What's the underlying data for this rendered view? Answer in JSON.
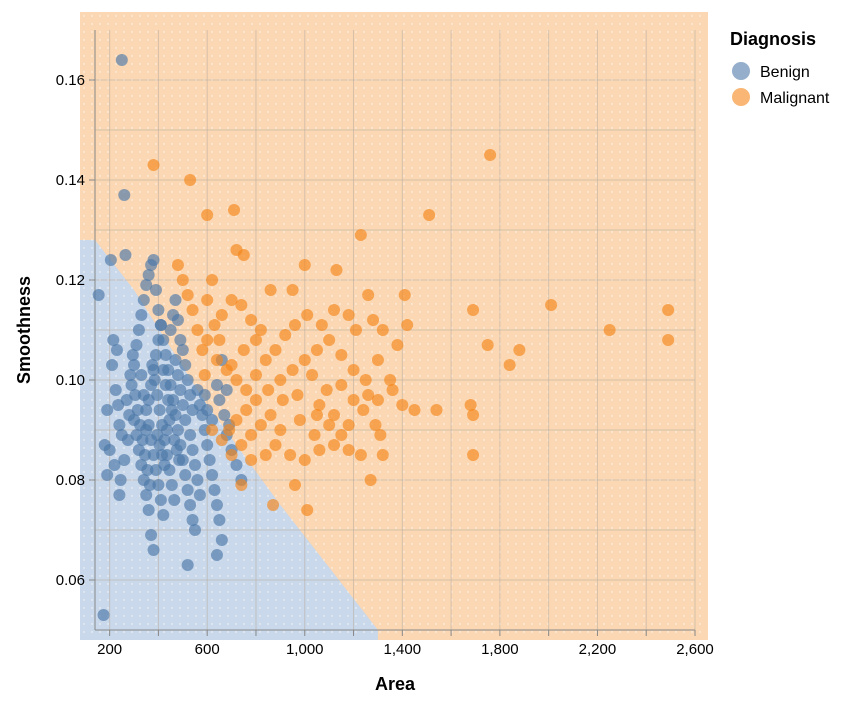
{
  "chart_data": {
    "type": "scatter",
    "xlabel": "Area",
    "ylabel": "Smoothness",
    "xlim": [
      140,
      2600
    ],
    "ylim": [
      0.05,
      0.17
    ],
    "x_ticks": [
      {
        "value": 200,
        "label": "200"
      },
      {
        "value": 600,
        "label": "600"
      },
      {
        "value": 1000,
        "label": "1,000"
      },
      {
        "value": 1400,
        "label": "1,400"
      },
      {
        "value": 1800,
        "label": "1,800"
      },
      {
        "value": 2200,
        "label": "2,200"
      },
      {
        "value": 2600,
        "label": "2,600"
      }
    ],
    "y_ticks": [
      {
        "value": 0.06,
        "label": "0.06"
      },
      {
        "value": 0.08,
        "label": "0.08"
      },
      {
        "value": 0.1,
        "label": "0.10"
      },
      {
        "value": 0.12,
        "label": "0.12"
      },
      {
        "value": 0.14,
        "label": "0.14"
      },
      {
        "value": 0.16,
        "label": "0.16"
      }
    ],
    "grid": true,
    "legend": {
      "title": "Diagnosis",
      "position": "top-right",
      "entries": [
        {
          "name": "Benign",
          "color": "#4c78a8"
        },
        {
          "name": "Malignant",
          "color": "#f58518"
        }
      ]
    },
    "background_regions": {
      "description_colors": {
        "Benign": "#c9d8ea",
        "Malignant": "#fbd7b3"
      },
      "boundary": [
        [
          140,
          0.128
        ],
        [
          300,
          0.118
        ],
        [
          600,
          0.095
        ],
        [
          900,
          0.075
        ],
        [
          1300,
          0.05
        ]
      ]
    },
    "series": [
      {
        "name": "Benign",
        "color": "#4c78a8",
        "points": [
          [
            250,
            0.164
          ],
          [
            260,
            0.137
          ],
          [
            155,
            0.117
          ],
          [
            205,
            0.124
          ],
          [
            265,
            0.125
          ],
          [
            180,
            0.087
          ],
          [
            200,
            0.086
          ],
          [
            190,
            0.081
          ],
          [
            190,
            0.094
          ],
          [
            175,
            0.053
          ],
          [
            215,
            0.108
          ],
          [
            230,
            0.106
          ],
          [
            210,
            0.103
          ],
          [
            225,
            0.098
          ],
          [
            235,
            0.095
          ],
          [
            240,
            0.091
          ],
          [
            250,
            0.089
          ],
          [
            220,
            0.083
          ],
          [
            240,
            0.077
          ],
          [
            245,
            0.08
          ],
          [
            260,
            0.084
          ],
          [
            275,
            0.088
          ],
          [
            280,
            0.093
          ],
          [
            290,
            0.099
          ],
          [
            300,
            0.103
          ],
          [
            310,
            0.107
          ],
          [
            320,
            0.11
          ],
          [
            330,
            0.113
          ],
          [
            340,
            0.116
          ],
          [
            350,
            0.119
          ],
          [
            360,
            0.121
          ],
          [
            370,
            0.123
          ],
          [
            380,
            0.124
          ],
          [
            390,
            0.118
          ],
          [
            400,
            0.114
          ],
          [
            410,
            0.111
          ],
          [
            420,
            0.108
          ],
          [
            430,
            0.105
          ],
          [
            440,
            0.102
          ],
          [
            450,
            0.099
          ],
          [
            460,
            0.096
          ],
          [
            470,
            0.093
          ],
          [
            480,
            0.09
          ],
          [
            490,
            0.087
          ],
          [
            500,
            0.084
          ],
          [
            510,
            0.081
          ],
          [
            520,
            0.078
          ],
          [
            530,
            0.075
          ],
          [
            540,
            0.072
          ],
          [
            550,
            0.07
          ],
          [
            330,
            0.101
          ],
          [
            340,
            0.097
          ],
          [
            350,
            0.094
          ],
          [
            360,
            0.091
          ],
          [
            370,
            0.088
          ],
          [
            380,
            0.085
          ],
          [
            390,
            0.082
          ],
          [
            400,
            0.079
          ],
          [
            410,
            0.076
          ],
          [
            420,
            0.073
          ],
          [
            300,
            0.092
          ],
          [
            310,
            0.089
          ],
          [
            320,
            0.086
          ],
          [
            330,
            0.083
          ],
          [
            340,
            0.08
          ],
          [
            350,
            0.077
          ],
          [
            360,
            0.074
          ],
          [
            370,
            0.069
          ],
          [
            380,
            0.066
          ],
          [
            520,
            0.063
          ],
          [
            270,
            0.096
          ],
          [
            285,
            0.101
          ],
          [
            295,
            0.105
          ],
          [
            305,
            0.097
          ],
          [
            315,
            0.094
          ],
          [
            325,
            0.091
          ],
          [
            335,
            0.088
          ],
          [
            345,
            0.085
          ],
          [
            355,
            0.082
          ],
          [
            365,
            0.079
          ],
          [
            375,
            0.103
          ],
          [
            385,
            0.1
          ],
          [
            395,
            0.097
          ],
          [
            405,
            0.094
          ],
          [
            415,
            0.091
          ],
          [
            425,
            0.088
          ],
          [
            435,
            0.085
          ],
          [
            445,
            0.082
          ],
          [
            455,
            0.079
          ],
          [
            465,
            0.076
          ],
          [
            470,
            0.104
          ],
          [
            480,
            0.101
          ],
          [
            490,
            0.098
          ],
          [
            500,
            0.095
          ],
          [
            510,
            0.092
          ],
          [
            530,
            0.089
          ],
          [
            540,
            0.086
          ],
          [
            550,
            0.083
          ],
          [
            560,
            0.08
          ],
          [
            570,
            0.077
          ],
          [
            580,
            0.093
          ],
          [
            590,
            0.09
          ],
          [
            600,
            0.087
          ],
          [
            610,
            0.084
          ],
          [
            620,
            0.081
          ],
          [
            630,
            0.078
          ],
          [
            640,
            0.075
          ],
          [
            650,
            0.072
          ],
          [
            660,
            0.068
          ],
          [
            640,
            0.065
          ],
          [
            450,
            0.11
          ],
          [
            460,
            0.113
          ],
          [
            470,
            0.116
          ],
          [
            480,
            0.112
          ],
          [
            490,
            0.108
          ],
          [
            500,
            0.106
          ],
          [
            510,
            0.103
          ],
          [
            520,
            0.1
          ],
          [
            530,
            0.097
          ],
          [
            540,
            0.094
          ],
          [
            560,
            0.098
          ],
          [
            570,
            0.095
          ],
          [
            590,
            0.097
          ],
          [
            600,
            0.094
          ],
          [
            620,
            0.092
          ],
          [
            640,
            0.099
          ],
          [
            650,
            0.096
          ],
          [
            670,
            0.093
          ],
          [
            680,
            0.089
          ],
          [
            700,
            0.086
          ],
          [
            720,
            0.083
          ],
          [
            740,
            0.08
          ],
          [
            680,
            0.098
          ],
          [
            660,
            0.104
          ],
          [
            690,
            0.091
          ],
          [
            395,
            0.089
          ],
          [
            405,
            0.087
          ],
          [
            415,
            0.085
          ],
          [
            425,
            0.083
          ],
          [
            435,
            0.09
          ],
          [
            445,
            0.092
          ],
          [
            455,
            0.094
          ],
          [
            465,
            0.088
          ],
          [
            475,
            0.086
          ],
          [
            485,
            0.084
          ],
          [
            350,
            0.09
          ],
          [
            360,
            0.096
          ],
          [
            370,
            0.099
          ],
          [
            380,
            0.102
          ],
          [
            390,
            0.105
          ],
          [
            400,
            0.108
          ],
          [
            410,
            0.111
          ],
          [
            420,
            0.102
          ],
          [
            430,
            0.099
          ],
          [
            440,
            0.096
          ]
        ]
      },
      {
        "name": "Malignant",
        "color": "#f58518",
        "points": [
          [
            1760,
            0.145
          ],
          [
            380,
            0.143
          ],
          [
            530,
            0.14
          ],
          [
            1510,
            0.133
          ],
          [
            710,
            0.134
          ],
          [
            600,
            0.133
          ],
          [
            1230,
            0.129
          ],
          [
            720,
            0.126
          ],
          [
            750,
            0.125
          ],
          [
            1000,
            0.123
          ],
          [
            1130,
            0.122
          ],
          [
            620,
            0.12
          ],
          [
            860,
            0.118
          ],
          [
            950,
            0.118
          ],
          [
            1260,
            0.117
          ],
          [
            1410,
            0.117
          ],
          [
            1690,
            0.114
          ],
          [
            2010,
            0.115
          ],
          [
            2490,
            0.114
          ],
          [
            2250,
            0.11
          ],
          [
            1750,
            0.107
          ],
          [
            1880,
            0.106
          ],
          [
            2490,
            0.108
          ],
          [
            1840,
            0.103
          ],
          [
            1420,
            0.111
          ],
          [
            1380,
            0.107
          ],
          [
            1300,
            0.104
          ],
          [
            1250,
            0.1
          ],
          [
            1200,
            0.102
          ],
          [
            1150,
            0.105
          ],
          [
            1100,
            0.108
          ],
          [
            1050,
            0.106
          ],
          [
            1000,
            0.104
          ],
          [
            950,
            0.102
          ],
          [
            900,
            0.1
          ],
          [
            850,
            0.098
          ],
          [
            800,
            0.096
          ],
          [
            760,
            0.094
          ],
          [
            720,
            0.092
          ],
          [
            690,
            0.09
          ],
          [
            1060,
            0.095
          ],
          [
            1120,
            0.093
          ],
          [
            1180,
            0.091
          ],
          [
            1240,
            0.094
          ],
          [
            1300,
            0.096
          ],
          [
            1360,
            0.098
          ],
          [
            1400,
            0.095
          ],
          [
            1450,
            0.094
          ],
          [
            1540,
            0.094
          ],
          [
            1680,
            0.095
          ],
          [
            1690,
            0.093
          ],
          [
            1690,
            0.085
          ],
          [
            1310,
            0.089
          ],
          [
            1270,
            0.08
          ],
          [
            1230,
            0.085
          ],
          [
            1180,
            0.086
          ],
          [
            1120,
            0.087
          ],
          [
            1060,
            0.086
          ],
          [
            1000,
            0.084
          ],
          [
            940,
            0.085
          ],
          [
            880,
            0.087
          ],
          [
            840,
            0.085
          ],
          [
            780,
            0.084
          ],
          [
            740,
            0.079
          ],
          [
            870,
            0.075
          ],
          [
            1010,
            0.074
          ],
          [
            960,
            0.079
          ],
          [
            900,
            0.09
          ],
          [
            980,
            0.092
          ],
          [
            1040,
            0.089
          ],
          [
            820,
            0.11
          ],
          [
            780,
            0.112
          ],
          [
            740,
            0.115
          ],
          [
            700,
            0.116
          ],
          [
            660,
            0.113
          ],
          [
            630,
            0.111
          ],
          [
            600,
            0.108
          ],
          [
            580,
            0.106
          ],
          [
            640,
            0.104
          ],
          [
            680,
            0.102
          ],
          [
            720,
            0.1
          ],
          [
            760,
            0.098
          ],
          [
            800,
            0.101
          ],
          [
            840,
            0.104
          ],
          [
            880,
            0.106
          ],
          [
            920,
            0.109
          ],
          [
            960,
            0.111
          ],
          [
            1010,
            0.113
          ],
          [
            1070,
            0.111
          ],
          [
            1120,
            0.114
          ],
          [
            1180,
            0.113
          ],
          [
            1210,
            0.11
          ],
          [
            1150,
            0.099
          ],
          [
            1090,
            0.098
          ],
          [
            1030,
            0.101
          ],
          [
            970,
            0.097
          ],
          [
            910,
            0.096
          ],
          [
            860,
            0.093
          ],
          [
            820,
            0.091
          ],
          [
            780,
            0.089
          ],
          [
            740,
            0.087
          ],
          [
            700,
            0.085
          ],
          [
            660,
            0.088
          ],
          [
            620,
            0.09
          ],
          [
            590,
            0.101
          ],
          [
            560,
            0.11
          ],
          [
            540,
            0.114
          ],
          [
            520,
            0.117
          ],
          [
            500,
            0.12
          ],
          [
            480,
            0.123
          ],
          [
            600,
            0.116
          ],
          [
            650,
            0.108
          ],
          [
            700,
            0.103
          ],
          [
            750,
            0.106
          ],
          [
            800,
            0.108
          ],
          [
            1320,
            0.11
          ],
          [
            1280,
            0.112
          ],
          [
            1350,
            0.1
          ],
          [
            1260,
            0.097
          ],
          [
            1200,
            0.096
          ],
          [
            1100,
            0.091
          ],
          [
            1050,
            0.093
          ],
          [
            1150,
            0.089
          ],
          [
            1290,
            0.091
          ],
          [
            1320,
            0.085
          ]
        ]
      }
    ]
  }
}
